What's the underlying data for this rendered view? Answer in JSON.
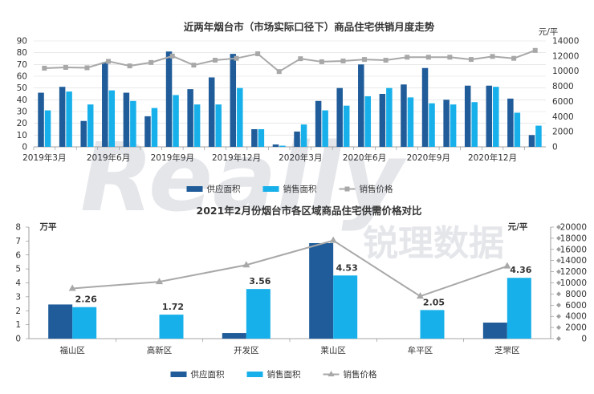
{
  "watermark": {
    "en": "Really",
    "cn": "锐理数据",
    "color": "#e4e6ea"
  },
  "colors": {
    "supply": "#1f5c99",
    "sales": "#18b0ea",
    "price": "#a8a8a8",
    "axis": "#555555",
    "grid": "#d9d9d9"
  },
  "chart_data": [
    {
      "type": "bar",
      "title": "近两年烟台市（市场实际口径下）商品住宅供销月度走势",
      "y2label": "元/平",
      "ylim": [
        0,
        90
      ],
      "yticks": [
        0,
        10,
        20,
        30,
        40,
        50,
        60,
        70,
        80,
        90
      ],
      "y2lim": [
        0,
        14000
      ],
      "y2ticks": [
        0,
        2000,
        4000,
        6000,
        8000,
        10000,
        12000,
        14000
      ],
      "x": [
        "2019-03",
        "2019-04",
        "2019-05",
        "2019-06",
        "2019-07",
        "2019-08",
        "2019-09",
        "2019-10",
        "2019-11",
        "2019-12",
        "2020-01",
        "2020-02",
        "2020-03",
        "2020-04",
        "2020-05",
        "2020-06",
        "2020-07",
        "2020-08",
        "2020-09",
        "2020-10",
        "2020-11",
        "2020-12",
        "2021-01",
        "2021-02"
      ],
      "xtick_labels": [
        "2019年3月",
        "2019年6月",
        "2019年9月",
        "2019年12月",
        "2020年3月",
        "2020年6月",
        "2020年9月",
        "2020年12月"
      ],
      "xtick_index": [
        0,
        3,
        6,
        9,
        12,
        15,
        18,
        21
      ],
      "series": [
        {
          "name": "供应面积",
          "kind": "bar",
          "axis": "left",
          "values": [
            46,
            51,
            22,
            72,
            46,
            26,
            81,
            49,
            59,
            79,
            15,
            2,
            13,
            39,
            50,
            70,
            45,
            53,
            67,
            40,
            52,
            52,
            41,
            10
          ]
        },
        {
          "name": "销售面积",
          "kind": "bar",
          "axis": "left",
          "values": [
            31,
            47,
            36,
            48,
            39,
            33,
            44,
            36,
            36,
            50,
            15,
            1,
            19,
            31,
            35,
            43,
            50,
            42,
            37,
            36,
            38,
            51,
            29,
            18
          ]
        },
        {
          "name": "销售价格",
          "kind": "line",
          "axis": "right",
          "values": [
            10400,
            10500,
            10450,
            11300,
            10700,
            11150,
            12000,
            10800,
            11450,
            11700,
            12300,
            9950,
            11650,
            11250,
            11350,
            11550,
            11450,
            11850,
            11850,
            11850,
            11550,
            11950,
            11700,
            12750
          ]
        }
      ],
      "legend": "bottom"
    },
    {
      "type": "bar",
      "title": "2021年2月份烟台市各区域商品住宅供需价格对比",
      "ylabel": "万平",
      "y2label": "元/平",
      "ylim": [
        0,
        8
      ],
      "yticks": [
        0,
        1,
        2,
        3,
        4,
        5,
        6,
        7,
        8
      ],
      "y2lim": [
        0,
        20000
      ],
      "y2ticks": [
        0,
        2000,
        4000,
        6000,
        8000,
        10000,
        12000,
        14000,
        16000,
        18000,
        20000
      ],
      "categories": [
        "福山区",
        "高新区",
        "开发区",
        "莱山区",
        "牟平区",
        "芝罘区"
      ],
      "series": [
        {
          "name": "供应面积",
          "kind": "bar",
          "axis": "left",
          "values": [
            2.45,
            0,
            0.4,
            6.85,
            0,
            1.15
          ]
        },
        {
          "name": "销售面积",
          "kind": "bar",
          "axis": "left",
          "values": [
            2.26,
            1.72,
            3.56,
            4.53,
            2.05,
            4.36
          ],
          "data_labels": [
            "2.26",
            "1.72",
            "3.56",
            "4.53",
            "2.05",
            "4.36"
          ]
        },
        {
          "name": "销售价格",
          "kind": "line",
          "axis": "right",
          "values": [
            9000,
            10200,
            13200,
            17600,
            7600,
            13000
          ]
        }
      ],
      "legend": "bottom"
    }
  ]
}
